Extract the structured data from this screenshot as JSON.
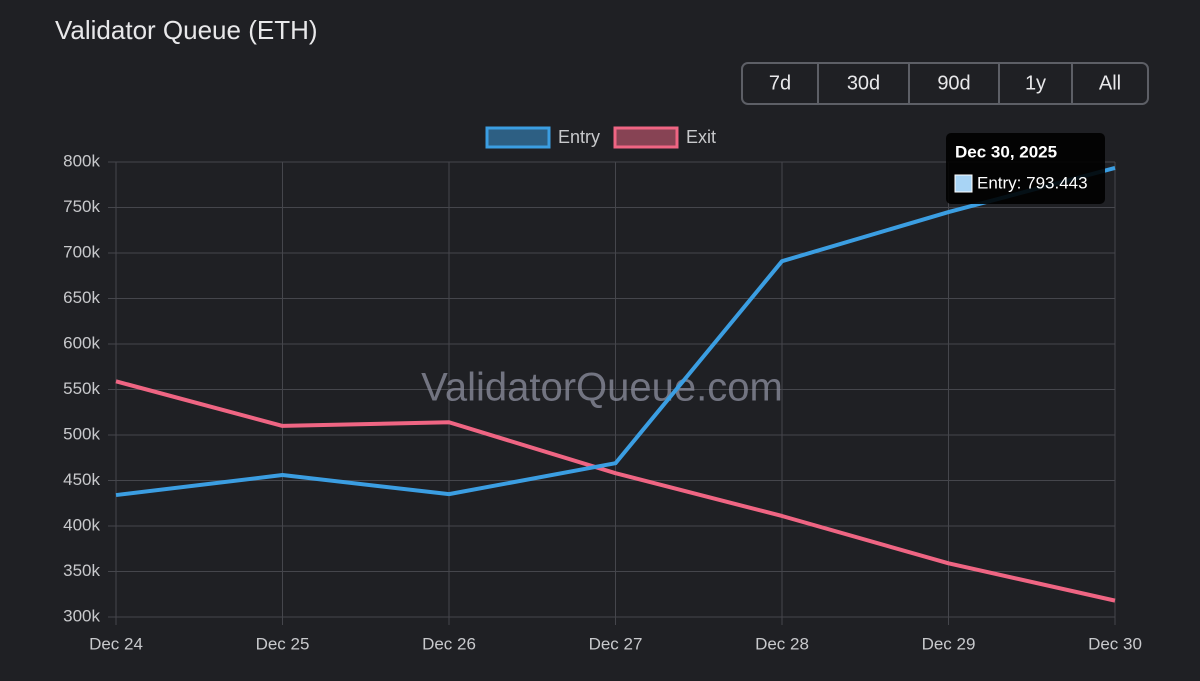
{
  "chart_data": {
    "type": "line",
    "title": "Validator Queue (ETH)",
    "ranges": [
      "7d",
      "30d",
      "90d",
      "1y",
      "All"
    ],
    "watermark": "ValidatorQueue.com",
    "categories": [
      "Dec 24",
      "Dec 25",
      "Dec 26",
      "Dec 27",
      "Dec 28",
      "Dec 29",
      "Dec 30"
    ],
    "series": [
      {
        "name": "Entry",
        "color": "#3b9ee2",
        "values": [
          434000,
          456000,
          435000,
          469000,
          691000,
          745000,
          793443
        ]
      },
      {
        "name": "Exit",
        "color": "#ef6583",
        "values": [
          559000,
          510000,
          514000,
          458000,
          411000,
          359000,
          318000
        ]
      }
    ],
    "ylim": [
      300000,
      800000
    ],
    "yticks": [
      {
        "value": 300000,
        "label": "300k"
      },
      {
        "value": 350000,
        "label": "350k"
      },
      {
        "value": 400000,
        "label": "400k"
      },
      {
        "value": 450000,
        "label": "450k"
      },
      {
        "value": 500000,
        "label": "500k"
      },
      {
        "value": 550000,
        "label": "550k"
      },
      {
        "value": 600000,
        "label": "600k"
      },
      {
        "value": 650000,
        "label": "650k"
      },
      {
        "value": 700000,
        "label": "700k"
      },
      {
        "value": 750000,
        "label": "750k"
      },
      {
        "value": 800000,
        "label": "800k"
      }
    ],
    "grid": true,
    "tooltip": {
      "title": "Dec 30, 2025",
      "text": "Entry: 793.443"
    }
  }
}
